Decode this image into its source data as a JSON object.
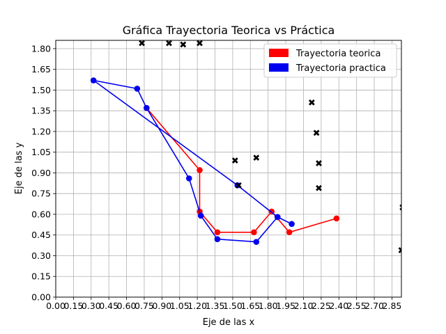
{
  "chart_data": {
    "type": "line",
    "title": "Gráfica Trayectoria Teorica vs Práctica",
    "xlabel": "Eje de las x",
    "ylabel": "Eje de las y",
    "xlim": [
      0,
      2.93
    ],
    "ylim": [
      0,
      1.86
    ],
    "xticks": [
      "0.00",
      "0.15",
      "0.30",
      "0.45",
      "0.60",
      "0.75",
      "0.90",
      "1.05",
      "1.20",
      "1.35",
      "1.50",
      "1.65",
      "1.80",
      "1.95",
      "2.10",
      "2.25",
      "2.40",
      "2.55",
      "2.70",
      "2.85"
    ],
    "yticks": [
      "0.00",
      "0.15",
      "0.30",
      "0.45",
      "0.60",
      "0.75",
      "0.90",
      "1.05",
      "1.20",
      "1.35",
      "1.50",
      "1.65",
      "1.80"
    ],
    "grid": true,
    "legend_position": "top-right",
    "series": [
      {
        "name": "Trayectoria teorica",
        "color": "#ff0000",
        "points": [
          [
            0.77,
            1.37
          ],
          [
            1.22,
            0.92
          ],
          [
            1.22,
            0.62
          ],
          [
            1.37,
            0.47
          ],
          [
            1.68,
            0.47
          ],
          [
            1.83,
            0.62
          ],
          [
            1.98,
            0.47
          ],
          [
            2.38,
            0.57
          ]
        ]
      },
      {
        "name": "Trayectoria practica",
        "color": "#0000ee",
        "points": [
          [
            2.0,
            0.53
          ],
          [
            1.88,
            0.58
          ],
          [
            1.54,
            0.81
          ],
          [
            0.32,
            1.57
          ],
          [
            0.69,
            1.51
          ],
          [
            0.77,
            1.37
          ],
          [
            1.13,
            0.86
          ],
          [
            1.23,
            0.59
          ],
          [
            1.37,
            0.42
          ],
          [
            1.7,
            0.4
          ],
          [
            1.88,
            0.58
          ]
        ]
      }
    ],
    "obstacles": {
      "marker": "x",
      "color": "#000000",
      "points": [
        [
          0.73,
          1.84
        ],
        [
          0.96,
          1.84
        ],
        [
          1.08,
          1.83
        ],
        [
          1.22,
          1.84
        ],
        [
          2.17,
          1.41
        ],
        [
          2.21,
          1.19
        ],
        [
          2.23,
          0.97
        ],
        [
          2.23,
          0.79
        ],
        [
          1.52,
          0.99
        ],
        [
          1.7,
          1.01
        ],
        [
          1.55,
          0.81
        ],
        [
          2.94,
          0.65
        ],
        [
          2.93,
          0.34
        ]
      ]
    }
  }
}
